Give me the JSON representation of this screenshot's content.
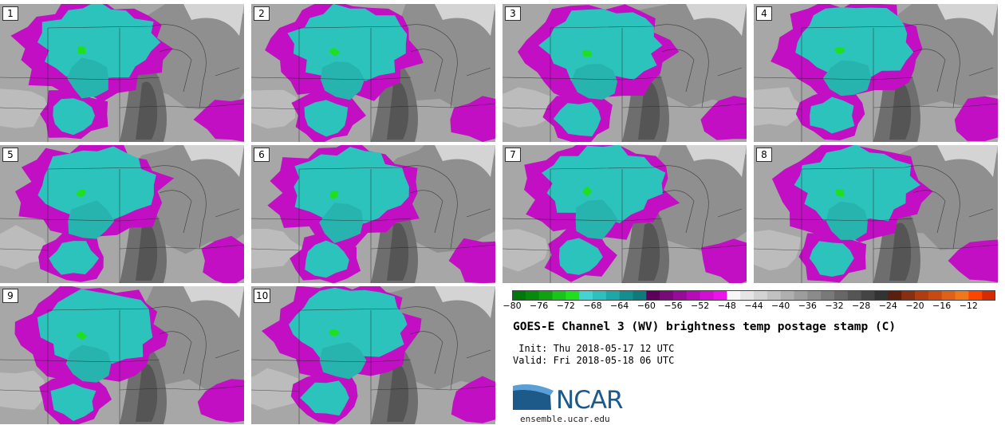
{
  "panels": [
    {
      "label": "1"
    },
    {
      "label": "2"
    },
    {
      "label": "3"
    },
    {
      "label": "4"
    },
    {
      "label": "5"
    },
    {
      "label": "6"
    },
    {
      "label": "7"
    },
    {
      "label": "8"
    },
    {
      "label": "9"
    },
    {
      "label": "10"
    }
  ],
  "colorbar": {
    "range": [
      -80,
      -8
    ],
    "step": 2,
    "tick_labels": [
      "−80",
      "−76",
      "−72",
      "−68",
      "−64",
      "−60",
      "−56",
      "−52",
      "−48",
      "−44",
      "−40",
      "−36",
      "−32",
      "−28",
      "−24",
      "−20",
      "−16",
      "−12"
    ],
    "colors": [
      "#00770a",
      "#078a0c",
      "#0fa110",
      "#17c41a",
      "#1fe01f",
      "#44d3d0",
      "#2ec0be",
      "#1ea7a7",
      "#148f8f",
      "#0e7b7b",
      "#5c005c",
      "#7a0a7a",
      "#980a98",
      "#b80ab8",
      "#d40fd4",
      "#ee11ee",
      "#f7f7f7",
      "#e5e5e5",
      "#d3d3d3",
      "#c1c1c1",
      "#afafaf",
      "#9d9d9d",
      "#8b8b8b",
      "#797979",
      "#676767",
      "#555555",
      "#444444",
      "#333333",
      "#5a1f0f",
      "#8a2e12",
      "#b03c10",
      "#c84a10",
      "#e0601a",
      "#f07818",
      "#ff4400",
      "#d82a00"
    ]
  },
  "title": "GOES-E Channel 3 (WV) brightness temp postage stamp (C)",
  "init": " Init: Thu 2018-05-17 12 UTC",
  "valid": "Valid: Fri 2018-05-18 06 UTC",
  "logo": {
    "text": "NCAR",
    "url_text": "ensemble.ucar.edu"
  },
  "colors": {
    "cloud_cyan": "#2cc3bd",
    "cloud_magenta": "#c20fc4",
    "dry_gray": "#6e6e6e",
    "moist_gray": "#a3a3a3"
  }
}
